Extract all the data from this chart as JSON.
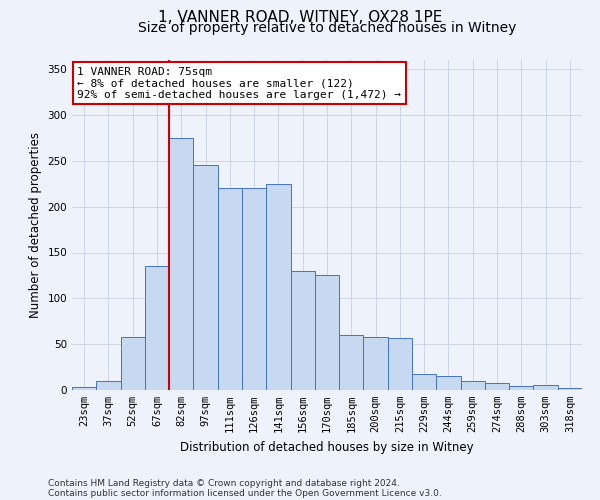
{
  "title_line1": "1, VANNER ROAD, WITNEY, OX28 1PE",
  "title_line2": "Size of property relative to detached houses in Witney",
  "xlabel": "Distribution of detached houses by size in Witney",
  "ylabel": "Number of detached properties",
  "footnote1": "Contains HM Land Registry data © Crown copyright and database right 2024.",
  "footnote2": "Contains public sector information licensed under the Open Government Licence v3.0.",
  "annotation_line1": "1 VANNER ROAD: 75sqm",
  "annotation_line2": "← 8% of detached houses are smaller (122)",
  "annotation_line3": "92% of semi-detached houses are larger (1,472) →",
  "bar_labels": [
    "23sqm",
    "37sqm",
    "52sqm",
    "67sqm",
    "82sqm",
    "97sqm",
    "111sqm",
    "126sqm",
    "141sqm",
    "156sqm",
    "170sqm",
    "185sqm",
    "200sqm",
    "215sqm",
    "229sqm",
    "244sqm",
    "259sqm",
    "274sqm",
    "288sqm",
    "303sqm",
    "318sqm"
  ],
  "bar_values": [
    3,
    10,
    58,
    135,
    275,
    245,
    220,
    220,
    225,
    130,
    125,
    60,
    58,
    57,
    17,
    15,
    10,
    8,
    4,
    5,
    2
  ],
  "bar_color": "#c6d9f0",
  "bar_edge_color": "#4472c4",
  "vline_color": "#cc0000",
  "vline_x": 3.5,
  "ylim": [
    0,
    360
  ],
  "yticks": [
    0,
    50,
    100,
    150,
    200,
    250,
    300,
    350
  ],
  "grid_color": "#c8d0e0",
  "background_color": "#eef2fb",
  "annotation_box_color": "#ffffff",
  "annotation_box_edge": "#cc0000",
  "title_fontsize": 11,
  "subtitle_fontsize": 10,
  "label_fontsize": 8.5,
  "tick_fontsize": 7.5,
  "annotation_fontsize": 8,
  "footnote_fontsize": 6.5
}
